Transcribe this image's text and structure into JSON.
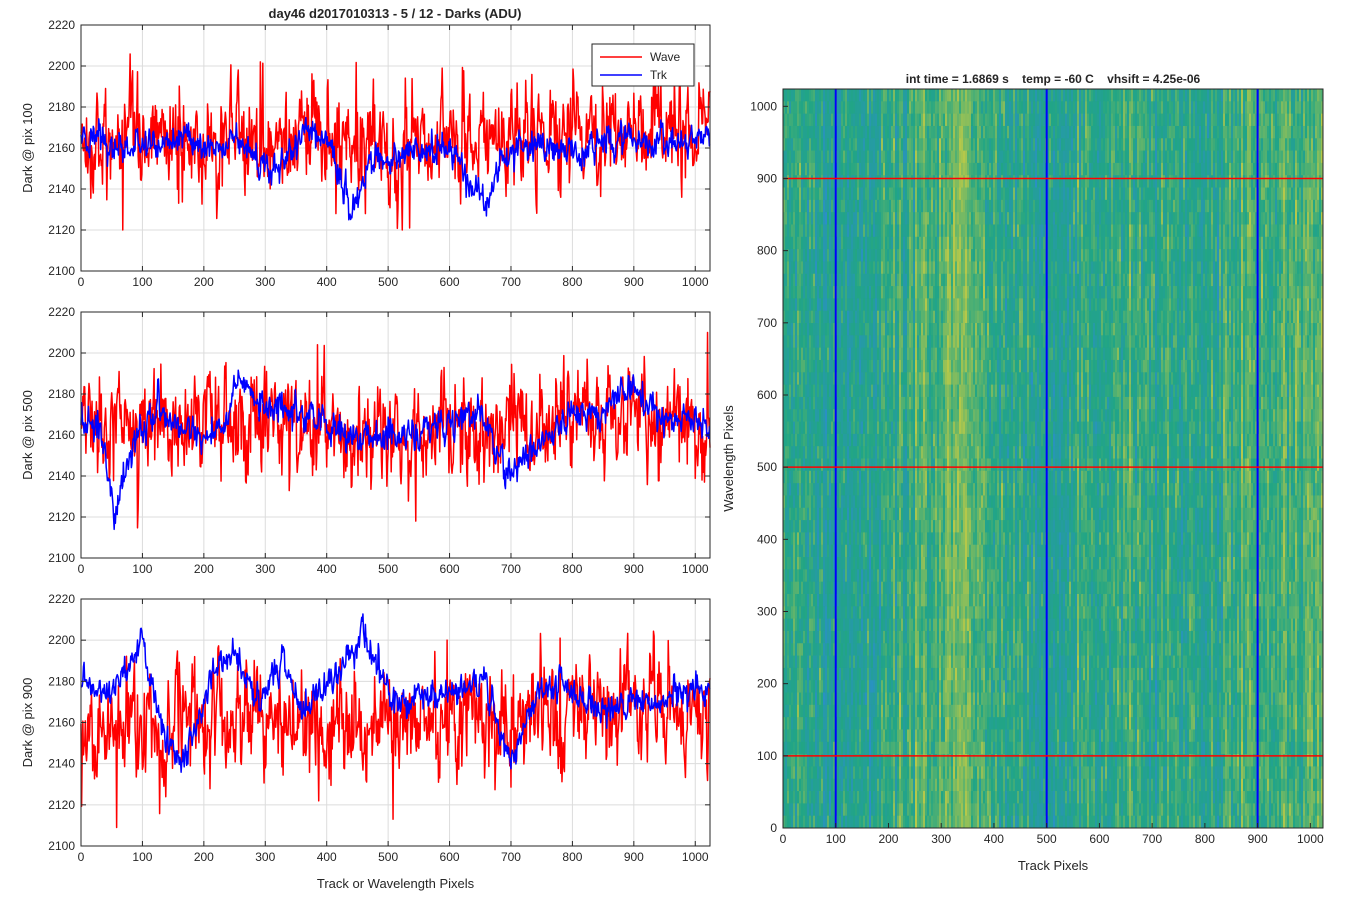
{
  "figure": {
    "suptitle": "day46 d2017010313 - 5 / 12 - Darks (ADU)"
  },
  "colors": {
    "wave": "#ff0000",
    "trk": "#0000ff",
    "grid": "#dcdcdc",
    "axis": "#262626",
    "heat_low": "#2a8fc8",
    "heat_mid": "#21a585",
    "heat_high": "#b5c84a"
  },
  "chart_data": [
    {
      "type": "line",
      "ylabel": "Dark @ pix 100",
      "xlabel": "",
      "xlim": [
        0,
        1024
      ],
      "ylim": [
        2100,
        2220
      ],
      "xticks": [
        0,
        100,
        200,
        300,
        400,
        500,
        600,
        700,
        800,
        900,
        1000
      ],
      "yticks": [
        2100,
        2120,
        2140,
        2160,
        2180,
        2200,
        2220
      ],
      "grid": true,
      "legend": {
        "placement": "top-right",
        "entries": [
          "Wave",
          "Trk"
        ]
      },
      "series": [
        {
          "name": "Wave",
          "color": "#ff0000",
          "noise": 12,
          "x": [
            0,
            50,
            100,
            150,
            200,
            250,
            300,
            350,
            400,
            450,
            500,
            550,
            600,
            650,
            700,
            750,
            800,
            850,
            900,
            950,
            1024
          ],
          "y": [
            2162,
            2160,
            2160,
            2162,
            2163,
            2165,
            2166,
            2165,
            2163,
            2162,
            2160,
            2160,
            2162,
            2162,
            2163,
            2165,
            2166,
            2168,
            2170,
            2170,
            2168
          ],
          "events": [
            {
              "x": 68,
              "y": 2120
            },
            {
              "x": 292,
              "y": 2202
            },
            {
              "x": 523,
              "y": 2120
            },
            {
              "x": 535,
              "y": 2121
            },
            {
              "x": 415,
              "y": 2128
            }
          ]
        },
        {
          "name": "Trk",
          "color": "#0000ff",
          "noise": 5,
          "x": [
            0,
            50,
            100,
            150,
            200,
            250,
            290,
            320,
            370,
            410,
            440,
            470,
            500,
            540,
            600,
            650,
            680,
            710,
            760,
            800,
            850,
            900,
            950,
            1024
          ],
          "y": [
            2165,
            2160,
            2162,
            2165,
            2160,
            2162,
            2155,
            2150,
            2172,
            2158,
            2128,
            2150,
            2155,
            2158,
            2160,
            2132,
            2150,
            2160,
            2160,
            2158,
            2162,
            2165,
            2160,
            2165
          ]
        }
      ]
    },
    {
      "type": "line",
      "ylabel": "Dark @ pix 500",
      "xlabel": "",
      "xlim": [
        0,
        1024
      ],
      "ylim": [
        2100,
        2220
      ],
      "xticks": [
        0,
        100,
        200,
        300,
        400,
        500,
        600,
        700,
        800,
        900,
        1000
      ],
      "yticks": [
        2100,
        2120,
        2140,
        2160,
        2180,
        2200,
        2220
      ],
      "grid": true,
      "series": [
        {
          "name": "Wave",
          "color": "#ff0000",
          "noise": 12,
          "x": [
            0,
            50,
            100,
            150,
            200,
            250,
            300,
            350,
            400,
            450,
            500,
            550,
            600,
            650,
            700,
            750,
            800,
            850,
            900,
            950,
            1024
          ],
          "y": [
            2162,
            2160,
            2160,
            2162,
            2163,
            2165,
            2168,
            2166,
            2163,
            2160,
            2158,
            2158,
            2160,
            2162,
            2162,
            2165,
            2168,
            2170,
            2170,
            2168,
            2165
          ],
          "events": [
            {
              "x": 385,
              "y": 2204
            },
            {
              "x": 1020,
              "y": 2210
            },
            {
              "x": 545,
              "y": 2118
            },
            {
              "x": 1015,
              "y": 2137
            }
          ]
        },
        {
          "name": "Trk",
          "color": "#0000ff",
          "noise": 5,
          "x": [
            0,
            30,
            55,
            90,
            130,
            180,
            220,
            260,
            300,
            350,
            420,
            480,
            550,
            600,
            650,
            700,
            740,
            800,
            850,
            900,
            950,
            1024
          ],
          "y": [
            2170,
            2160,
            2122,
            2160,
            2172,
            2160,
            2160,
            2185,
            2172,
            2172,
            2160,
            2160,
            2160,
            2165,
            2170,
            2140,
            2155,
            2168,
            2170,
            2182,
            2168,
            2165
          ]
        }
      ]
    },
    {
      "type": "line",
      "ylabel": "Dark @ pix 900",
      "xlabel": "Track or Wavelength Pixels",
      "xlim": [
        0,
        1024
      ],
      "ylim": [
        2100,
        2220
      ],
      "xticks": [
        0,
        100,
        200,
        300,
        400,
        500,
        600,
        700,
        800,
        900,
        1000
      ],
      "yticks": [
        2100,
        2120,
        2140,
        2160,
        2180,
        2200,
        2220
      ],
      "grid": true,
      "series": [
        {
          "name": "Wave",
          "color": "#ff0000",
          "noise": 12,
          "x": [
            0,
            50,
            100,
            150,
            200,
            250,
            300,
            350,
            400,
            450,
            500,
            550,
            600,
            650,
            700,
            750,
            800,
            850,
            900,
            950,
            1024
          ],
          "y": [
            2160,
            2155,
            2158,
            2160,
            2162,
            2162,
            2162,
            2160,
            2158,
            2158,
            2160,
            2160,
            2162,
            2163,
            2163,
            2165,
            2168,
            2168,
            2168,
            2168,
            2165
          ],
          "events": [
            {
              "x": 58,
              "y": 2109
            },
            {
              "x": 596,
              "y": 2200
            },
            {
              "x": 508,
              "y": 2113
            },
            {
              "x": 780,
              "y": 2201
            }
          ]
        },
        {
          "name": "Trk",
          "color": "#0000ff",
          "noise": 5,
          "x": [
            0,
            50,
            100,
            130,
            160,
            210,
            250,
            290,
            330,
            360,
            400,
            460,
            510,
            550,
            600,
            660,
            700,
            750,
            800,
            840,
            900,
            950,
            1024
          ],
          "y": [
            2178,
            2175,
            2200,
            2160,
            2138,
            2180,
            2195,
            2170,
            2192,
            2165,
            2180,
            2202,
            2168,
            2172,
            2175,
            2178,
            2140,
            2180,
            2178,
            2165,
            2172,
            2170,
            2178
          ]
        }
      ]
    },
    {
      "type": "heatmap",
      "title": "int time = 1.6869 s    temp = -60 C    vhsift = 4.25e-06",
      "xlabel": "Track Pixels",
      "ylabel": "Wavelength Pixels",
      "xlim": [
        0,
        1024
      ],
      "ylim": [
        0,
        1024
      ],
      "xticks": [
        0,
        100,
        200,
        300,
        400,
        500,
        600,
        700,
        800,
        900,
        1000
      ],
      "yticks": [
        0,
        100,
        200,
        300,
        400,
        500,
        600,
        700,
        800,
        900,
        1000
      ],
      "grid": false,
      "column_profile": {
        "x": [
          0,
          50,
          100,
          150,
          200,
          250,
          300,
          340,
          380,
          420,
          460,
          500,
          540,
          580,
          620,
          660,
          700,
          740,
          780,
          820,
          860,
          900,
          940,
          980,
          1024
        ],
        "level": [
          0.55,
          0.45,
          0.4,
          0.42,
          0.52,
          0.58,
          0.68,
          0.78,
          0.62,
          0.52,
          0.45,
          0.4,
          0.44,
          0.5,
          0.56,
          0.6,
          0.55,
          0.5,
          0.45,
          0.48,
          0.55,
          0.62,
          0.58,
          0.66,
          0.7
        ]
      },
      "vertical_lines": {
        "color": "#0000ff",
        "x": [
          100,
          500,
          900
        ]
      },
      "horizontal_lines": {
        "color": "#ff0000",
        "y": [
          100,
          500,
          900
        ]
      }
    }
  ]
}
